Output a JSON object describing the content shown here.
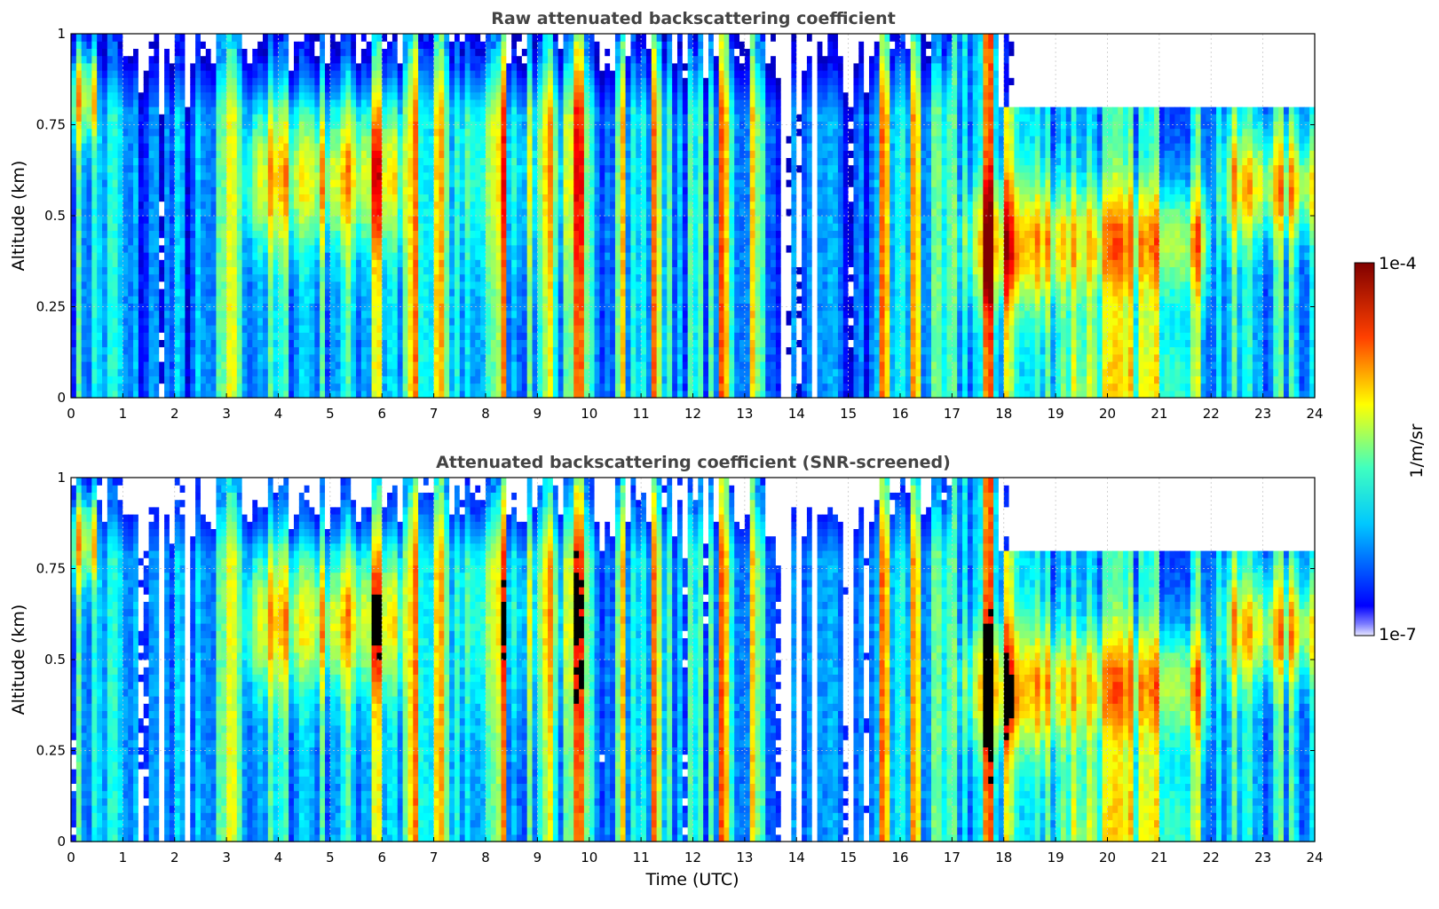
{
  "chart_data": [
    {
      "type": "heatmap",
      "title": "Raw attenuated backscattering coefficient",
      "xlabel": "",
      "ylabel": "Altitude (km)",
      "xlim": [
        0,
        24
      ],
      "ylim": [
        0,
        1
      ],
      "x_ticks": [
        "0",
        "1",
        "2",
        "3",
        "4",
        "5",
        "6",
        "7",
        "8",
        "9",
        "10",
        "11",
        "12",
        "13",
        "14",
        "15",
        "16",
        "17",
        "18",
        "19",
        "20",
        "21",
        "22",
        "23",
        "24"
      ],
      "y_ticks": [
        "0",
        "0.25",
        "0.5",
        "0.75",
        "1"
      ],
      "grid": true,
      "screened": false
    },
    {
      "type": "heatmap",
      "title": "Attenuated backscattering coefficient (SNR-screened)",
      "xlabel": "Time (UTC)",
      "ylabel": "Altitude (km)",
      "xlim": [
        0,
        24
      ],
      "ylim": [
        0,
        1
      ],
      "x_ticks": [
        "0",
        "1",
        "2",
        "3",
        "4",
        "5",
        "6",
        "7",
        "8",
        "9",
        "10",
        "11",
        "12",
        "13",
        "14",
        "15",
        "16",
        "17",
        "18",
        "19",
        "20",
        "21",
        "22",
        "23",
        "24"
      ],
      "y_ticks": [
        "0",
        "0.25",
        "0.5",
        "0.75",
        "1"
      ],
      "grid": true,
      "screened": true
    }
  ],
  "colorbar": {
    "label": "1/m/sr",
    "max_label": "1e-4",
    "min_label": "1e-7",
    "scale": "log",
    "colormap": "jet"
  }
}
